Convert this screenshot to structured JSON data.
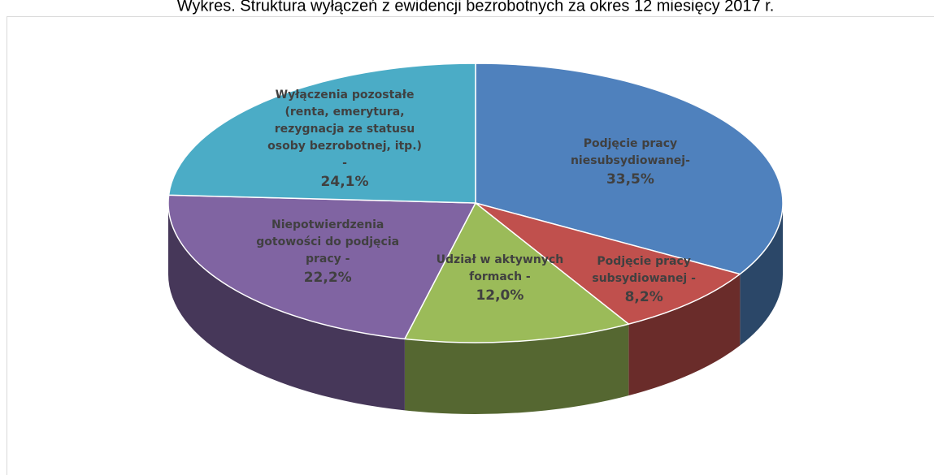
{
  "chart_data": {
    "type": "pie",
    "title": "Wykres. Struktura wyłączeń z ewidencji bezrobotnych za okres 12 miesięcy 2017 r.",
    "categories": [
      "Podjęcie pracy niesubsydiowanej-",
      "Podjęcie pracy subsydiowanej -",
      "Udział w aktywnych formach -",
      "Niepotwierdzenia gotowości do podjęcia pracy -",
      "Wyłączenia pozostałe (renta, emerytura, rezygnacja ze statusu osoby bezrobotnej, itp.) -"
    ],
    "values": [
      33.5,
      8.2,
      12.0,
      22.2,
      24.1
    ],
    "value_labels": [
      "33,5%",
      "8,2%",
      "12,0%",
      "22,2%",
      "24,1%"
    ],
    "colors": [
      "#4f81bd",
      "#c0504d",
      "#9bbb59",
      "#8064a2",
      "#4bacc6"
    ]
  }
}
